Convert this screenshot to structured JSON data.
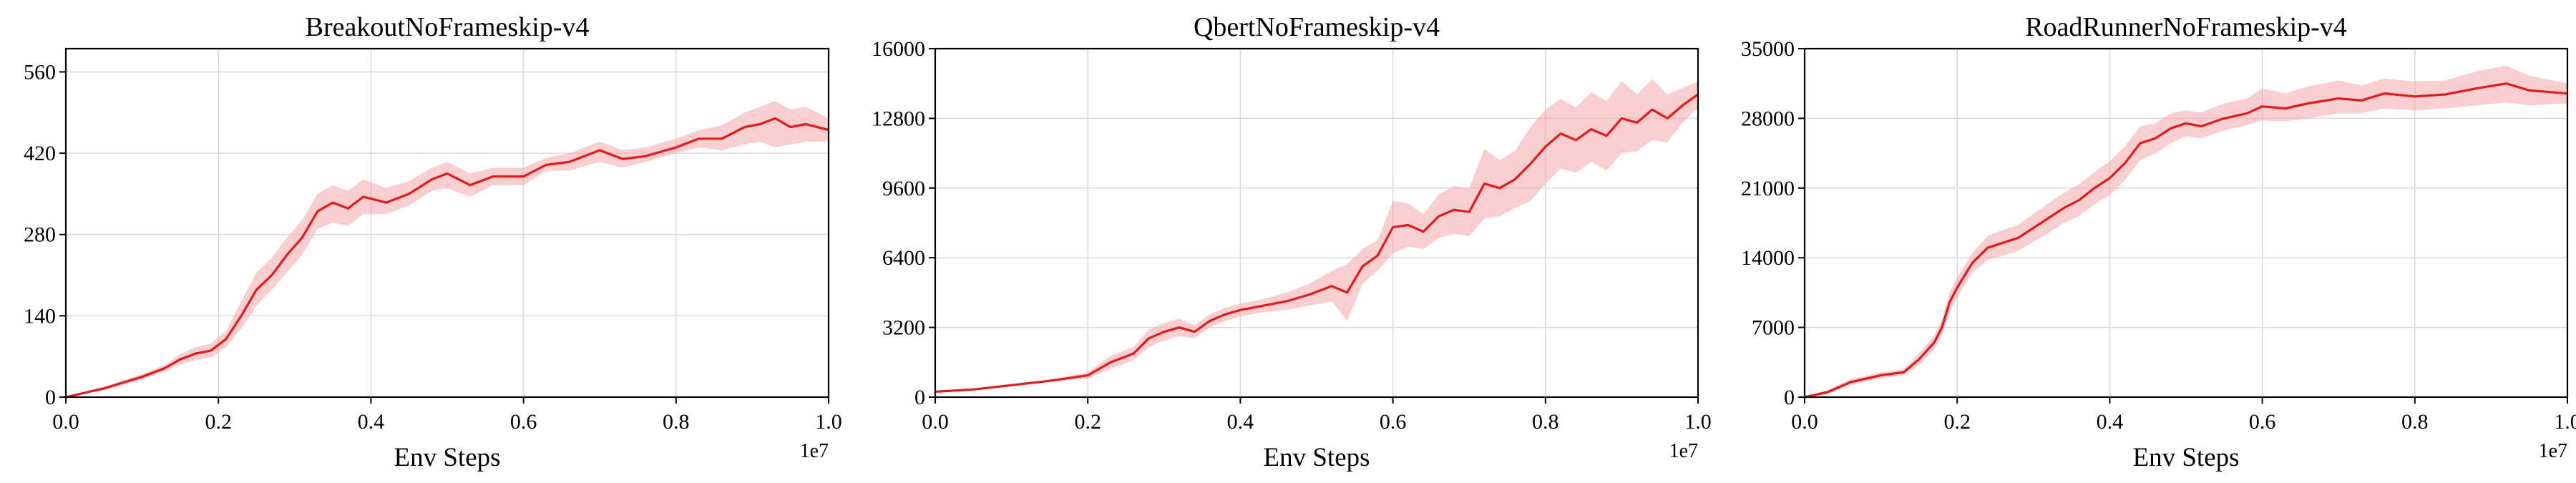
{
  "chart_data": [
    {
      "type": "line",
      "title": "BreakoutNoFrameskip-v4",
      "xlabel": "Env Steps",
      "ylabel": "",
      "x_offset_label": "1e7",
      "xlim": [
        0,
        1.0
      ],
      "ylim": [
        0,
        600
      ],
      "xticks": [
        0.0,
        0.2,
        0.4,
        0.6,
        0.8,
        1.0
      ],
      "xtick_labels": [
        "0.0",
        "0.2",
        "0.4",
        "0.6",
        "0.8",
        "1.0"
      ],
      "yticks": [
        0,
        140,
        280,
        420,
        560
      ],
      "ytick_labels": [
        "0",
        "140",
        "280",
        "420",
        "560"
      ],
      "grid": true,
      "color": "#e31a1c",
      "band_color": "#f4a6a8",
      "series": [
        {
          "x": [
            0.0,
            0.05,
            0.1,
            0.13,
            0.15,
            0.17,
            0.19,
            0.21,
            0.23,
            0.25,
            0.27,
            0.29,
            0.31,
            0.33,
            0.35,
            0.37,
            0.39,
            0.42,
            0.45,
            0.48,
            0.5,
            0.53,
            0.56,
            0.6,
            0.63,
            0.66,
            0.7,
            0.73,
            0.76,
            0.8,
            0.83,
            0.86,
            0.89,
            0.91,
            0.93,
            0.95,
            0.97,
            1.0
          ],
          "y": [
            0,
            15,
            35,
            50,
            65,
            75,
            80,
            100,
            140,
            185,
            210,
            245,
            275,
            320,
            335,
            325,
            345,
            335,
            350,
            375,
            385,
            365,
            380,
            380,
            400,
            405,
            425,
            410,
            415,
            430,
            445,
            445,
            465,
            470,
            480,
            465,
            470,
            460
          ],
          "lower": [
            0,
            12,
            30,
            44,
            56,
            64,
            68,
            86,
            118,
            158,
            185,
            215,
            245,
            290,
            300,
            295,
            315,
            315,
            330,
            355,
            360,
            345,
            365,
            365,
            390,
            390,
            405,
            395,
            405,
            420,
            430,
            425,
            435,
            440,
            430,
            435,
            440,
            440
          ],
          "upper": [
            0,
            18,
            40,
            56,
            74,
            86,
            92,
            114,
            165,
            215,
            240,
            275,
            305,
            350,
            365,
            355,
            375,
            360,
            372,
            395,
            405,
            385,
            395,
            395,
            412,
            420,
            440,
            425,
            430,
            445,
            460,
            468,
            490,
            500,
            510,
            495,
            500,
            480
          ]
        }
      ]
    },
    {
      "type": "line",
      "title": "QbertNoFrameskip-v4",
      "xlabel": "Env Steps",
      "ylabel": "",
      "x_offset_label": "1e7",
      "xlim": [
        0,
        1.0
      ],
      "ylim": [
        0,
        16000
      ],
      "xticks": [
        0.0,
        0.2,
        0.4,
        0.6,
        0.8,
        1.0
      ],
      "xtick_labels": [
        "0.0",
        "0.2",
        "0.4",
        "0.6",
        "0.8",
        "1.0"
      ],
      "yticks": [
        0,
        3200,
        6400,
        9600,
        12800,
        16000
      ],
      "ytick_labels": [
        "0",
        "3200",
        "6400",
        "9600",
        "12800",
        "16000"
      ],
      "grid": true,
      "color": "#e31a1c",
      "band_color": "#f4a6a8",
      "series": [
        {
          "x": [
            0.0,
            0.05,
            0.1,
            0.15,
            0.2,
            0.23,
            0.26,
            0.28,
            0.3,
            0.32,
            0.34,
            0.36,
            0.38,
            0.4,
            0.43,
            0.46,
            0.49,
            0.52,
            0.54,
            0.56,
            0.58,
            0.6,
            0.62,
            0.64,
            0.66,
            0.68,
            0.7,
            0.72,
            0.74,
            0.76,
            0.78,
            0.8,
            0.82,
            0.84,
            0.86,
            0.88,
            0.9,
            0.92,
            0.94,
            0.96,
            0.98,
            1.0
          ],
          "y": [
            250,
            350,
            550,
            750,
            1000,
            1600,
            2000,
            2700,
            3000,
            3200,
            3000,
            3500,
            3800,
            4000,
            4200,
            4400,
            4700,
            5100,
            4800,
            6000,
            6500,
            7800,
            7900,
            7600,
            8300,
            8600,
            8500,
            9800,
            9600,
            10000,
            10700,
            11500,
            12100,
            11800,
            12300,
            12000,
            12800,
            12600,
            13200,
            12800,
            13400,
            13900
          ],
          "lower": [
            200,
            300,
            500,
            700,
            850,
            1300,
            1700,
            2300,
            2600,
            2800,
            2700,
            3200,
            3500,
            3700,
            3900,
            4000,
            4200,
            4400,
            3500,
            5200,
            5800,
            6600,
            6900,
            6800,
            7300,
            7500,
            7400,
            8200,
            8300,
            8700,
            9000,
            9800,
            10500,
            10300,
            10800,
            10400,
            11200,
            11300,
            11800,
            11700,
            12600,
            13300
          ],
          "upper": [
            300,
            400,
            600,
            800,
            1150,
            1900,
            2300,
            3100,
            3400,
            3600,
            3300,
            3800,
            4100,
            4300,
            4500,
            4800,
            5200,
            5800,
            6100,
            6800,
            7200,
            9000,
            8900,
            8400,
            9300,
            9700,
            9600,
            11400,
            10900,
            11300,
            12400,
            13200,
            13700,
            13300,
            14000,
            13600,
            14500,
            13900,
            14600,
            13900,
            14200,
            14500
          ]
        }
      ]
    },
    {
      "type": "line",
      "title": "RoadRunnerNoFrameskip-v4",
      "xlabel": "Env Steps",
      "ylabel": "",
      "x_offset_label": "1e7",
      "xlim": [
        0,
        1.0
      ],
      "ylim": [
        0,
        35000
      ],
      "xticks": [
        0.0,
        0.2,
        0.4,
        0.6,
        0.8,
        1.0
      ],
      "xtick_labels": [
        "0.0",
        "0.2",
        "0.4",
        "0.6",
        "0.8",
        "1.0"
      ],
      "yticks": [
        0,
        7000,
        14000,
        21000,
        28000,
        35000
      ],
      "ytick_labels": [
        "0",
        "7000",
        "14000",
        "21000",
        "28000",
        "35000"
      ],
      "grid": true,
      "color": "#e31a1c",
      "band_color": "#f4a6a8",
      "series": [
        {
          "x": [
            0.0,
            0.03,
            0.06,
            0.1,
            0.13,
            0.15,
            0.17,
            0.18,
            0.19,
            0.2,
            0.22,
            0.24,
            0.26,
            0.28,
            0.3,
            0.32,
            0.34,
            0.36,
            0.38,
            0.4,
            0.42,
            0.44,
            0.46,
            0.48,
            0.5,
            0.52,
            0.55,
            0.58,
            0.6,
            0.63,
            0.66,
            0.7,
            0.73,
            0.76,
            0.8,
            0.84,
            0.88,
            0.92,
            0.95,
            1.0
          ],
          "y": [
            0,
            500,
            1500,
            2200,
            2500,
            3800,
            5500,
            7000,
            9500,
            11000,
            13500,
            15000,
            15500,
            16000,
            17000,
            18000,
            19000,
            19800,
            21000,
            22000,
            23500,
            25500,
            26000,
            27000,
            27500,
            27200,
            28000,
            28500,
            29200,
            29000,
            29500,
            30000,
            29800,
            30500,
            30200,
            30400,
            31000,
            31500,
            30800,
            30500
          ],
          "lower": [
            0,
            300,
            1200,
            1900,
            2200,
            3200,
            4800,
            6200,
            8500,
            10000,
            12500,
            13800,
            14200,
            14700,
            15600,
            16500,
            17500,
            18200,
            19400,
            20300,
            21800,
            23800,
            24500,
            25500,
            26200,
            26000,
            26800,
            27300,
            27800,
            27700,
            28000,
            28500,
            28500,
            29000,
            28800,
            29000,
            29300,
            29600,
            29300,
            29500
          ],
          "upper": [
            0,
            700,
            1800,
            2500,
            2800,
            4400,
            6200,
            7800,
            10500,
            12000,
            14500,
            16200,
            16800,
            17300,
            18400,
            19500,
            20500,
            21400,
            22600,
            23700,
            25200,
            27200,
            27500,
            28500,
            28800,
            28600,
            29500,
            30000,
            31000,
            30500,
            31200,
            31800,
            31300,
            32000,
            31700,
            31800,
            32700,
            33300,
            32300,
            31500
          ]
        }
      ]
    }
  ]
}
